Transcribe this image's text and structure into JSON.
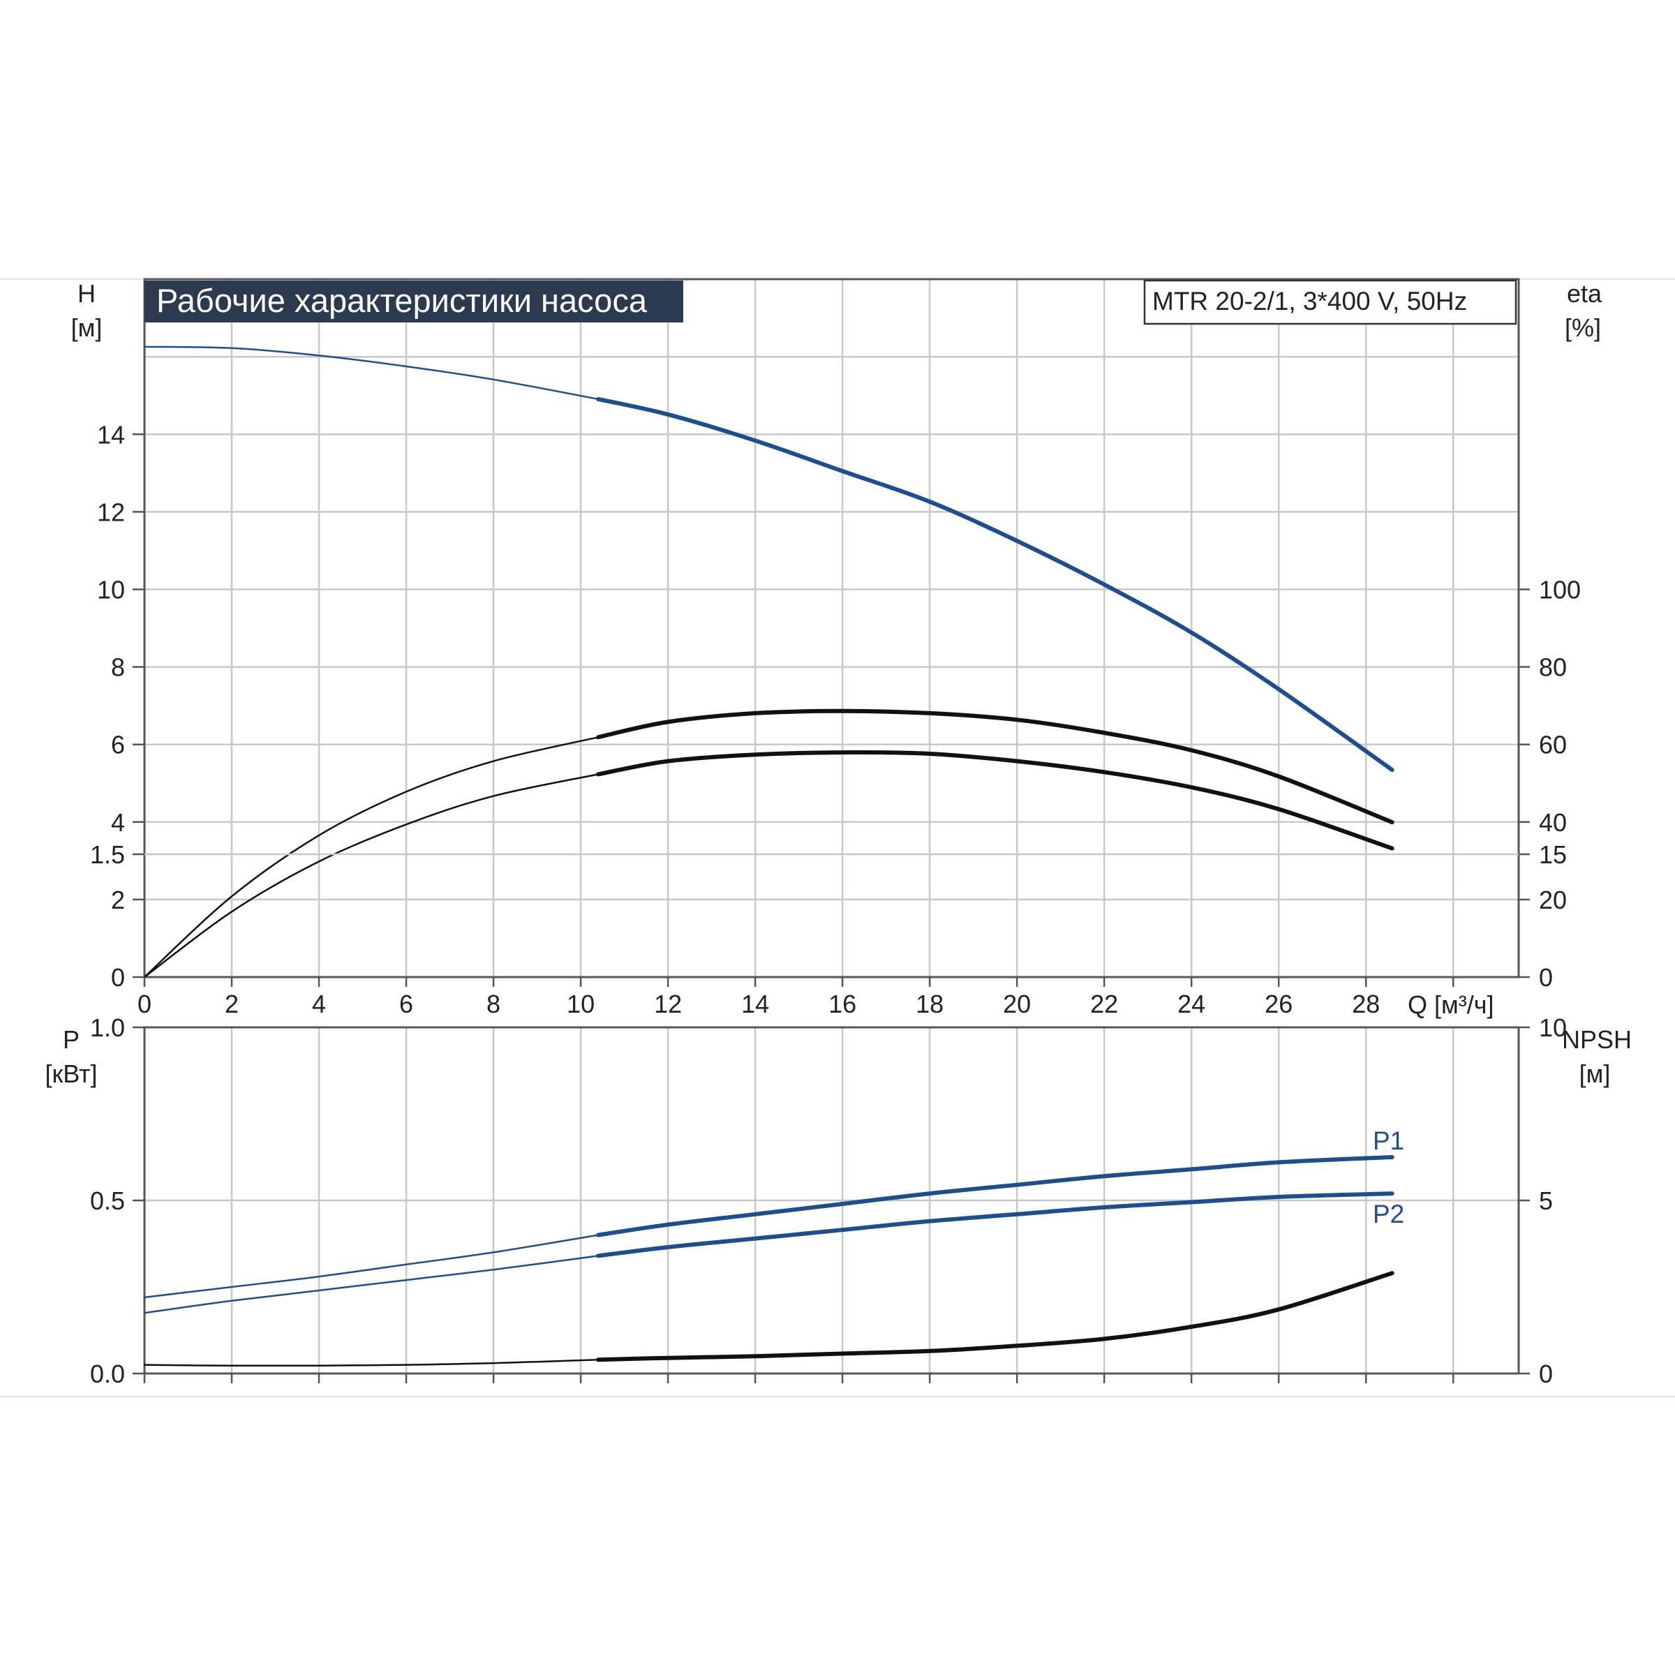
{
  "title": "Рабочие характеристики насоса",
  "model_label": "MTR 20-2/1, 3*400 V, 50Hz",
  "colors": {
    "blue": "#1f4e8c",
    "black": "#111111",
    "grid": "#c8c8c8",
    "title_bg": "#2c3a4f"
  },
  "chart_data": [
    {
      "type": "line",
      "panel": "top",
      "left_axis": {
        "label": "H",
        "unit": "[м]",
        "ticks": [
          "0",
          "2",
          "4",
          "6",
          "8",
          "10",
          "12",
          "14"
        ],
        "ylim": [
          0,
          16
        ]
      },
      "right_axis": {
        "label": "eta",
        "unit": "[%]",
        "ticks": [
          "0",
          "20",
          "40",
          "60",
          "80",
          "100"
        ],
        "ylim": [
          0,
          160
        ]
      },
      "x_axis": {
        "label": "Q [м³/ч]",
        "ticks": [
          "0",
          "2",
          "4",
          "6",
          "8",
          "10",
          "12",
          "14",
          "16",
          "18",
          "20",
          "22",
          "24",
          "26",
          "28"
        ],
        "xlim": [
          0,
          31.5
        ]
      },
      "grid": true,
      "series": [
        {
          "axis": "left",
          "color": "blue",
          "thin_until": 10.4,
          "x": [
            0,
            2,
            4,
            6,
            8,
            10.4,
            12,
            14,
            16,
            18,
            20,
            22,
            24,
            26,
            28.6
          ],
          "y": [
            14.45,
            14.42,
            14.25,
            14.0,
            13.7,
            13.25,
            12.9,
            12.3,
            11.6,
            10.9,
            10.0,
            9.0,
            7.9,
            6.6,
            4.75
          ]
        },
        {
          "axis": "right",
          "color": "black",
          "thin_until": 10.4,
          "x": [
            0,
            2,
            4,
            6,
            8,
            10.4,
            12,
            14,
            16,
            18,
            20,
            22,
            24,
            26,
            28.6
          ],
          "y": [
            0,
            18.5,
            32.5,
            42.5,
            49.5,
            55,
            58.5,
            60.5,
            61,
            60.5,
            59,
            56,
            52,
            46,
            35.5
          ]
        },
        {
          "axis": "right",
          "color": "black",
          "thin_until": 10.4,
          "x": [
            0,
            2,
            4,
            6,
            8,
            10.4,
            12,
            14,
            16,
            18,
            20,
            22,
            24,
            26,
            28.6
          ],
          "y": [
            0,
            15,
            26.5,
            35,
            41.5,
            46.5,
            49.5,
            51,
            51.5,
            51.2,
            49.5,
            47,
            43.5,
            38.5,
            29.5
          ]
        }
      ]
    },
    {
      "type": "line",
      "panel": "bottom",
      "left_axis": {
        "label": "P",
        "unit": "[кВт]",
        "ticks": [
          "0.0",
          "0.5",
          "1.0",
          "1.5"
        ],
        "ylim": [
          0,
          2.0
        ]
      },
      "right_axis": {
        "label": "NPSH",
        "unit": "[м]",
        "ticks": [
          "0",
          "5",
          "10",
          "15"
        ],
        "ylim": [
          0,
          20
        ]
      },
      "x_axis": {
        "xlim": [
          0,
          31.5
        ]
      },
      "grid": true,
      "series": [
        {
          "name": "P1",
          "axis": "left",
          "color": "blue",
          "thin_until": 10.4,
          "x": [
            0,
            2,
            4,
            6,
            8,
            10.4,
            12,
            14,
            16,
            18,
            20,
            22,
            24,
            26,
            28.6
          ],
          "y": [
            0.44,
            0.5,
            0.56,
            0.63,
            0.7,
            0.8,
            0.86,
            0.92,
            0.98,
            1.04,
            1.09,
            1.14,
            1.18,
            1.22,
            1.25
          ]
        },
        {
          "name": "P2",
          "axis": "left",
          "color": "blue",
          "thin_until": 10.4,
          "x": [
            0,
            2,
            4,
            6,
            8,
            10.4,
            12,
            14,
            16,
            18,
            20,
            22,
            24,
            26,
            28.6
          ],
          "y": [
            0.35,
            0.42,
            0.48,
            0.54,
            0.6,
            0.68,
            0.73,
            0.78,
            0.83,
            0.88,
            0.92,
            0.96,
            0.99,
            1.02,
            1.04
          ]
        },
        {
          "axis": "right",
          "color": "black",
          "thin_until": 10.4,
          "x": [
            0,
            2,
            4,
            6,
            8,
            10.4,
            12,
            14,
            16,
            18,
            20,
            22,
            24,
            26,
            28.6
          ],
          "y": [
            0.5,
            0.45,
            0.45,
            0.5,
            0.6,
            0.8,
            0.9,
            1.0,
            1.15,
            1.3,
            1.6,
            2.0,
            2.7,
            3.7,
            5.8
          ]
        }
      ]
    }
  ]
}
